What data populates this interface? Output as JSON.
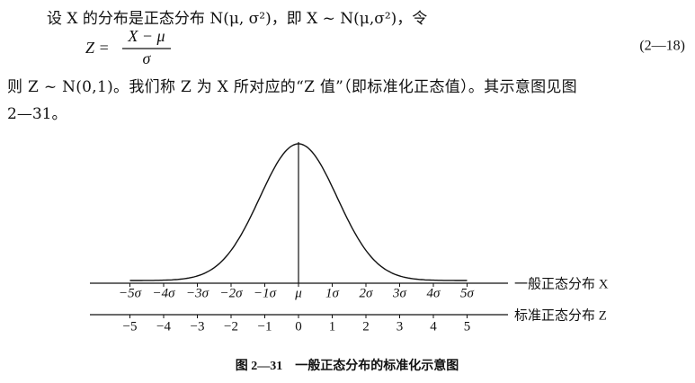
{
  "text": {
    "line1": "设 X 的分布是正态分布 N(μ, σ²)，即 X ~ N(μ,σ²)，令",
    "line2": "则 Z ~ N(0,1)。我们称 Z 为 X 所对应的“Z 值”（即标准化正态值）。其示意图见图",
    "line3": "2—31。"
  },
  "equation": {
    "lhs": "Z =",
    "numerator": "X − μ",
    "denominator": "σ",
    "number": "(2—18)"
  },
  "figure": {
    "upper_axis": {
      "labels": [
        "−5σ",
        "−4σ",
        "−3σ",
        "−2σ",
        "−1σ",
        "μ",
        "1σ",
        "2σ",
        "3σ",
        "4σ",
        "5σ"
      ],
      "name": "一般正态分布 X"
    },
    "lower_axis": {
      "labels": [
        "−5",
        "−4",
        "−3",
        "−2",
        "−1",
        "0",
        "1",
        "2",
        "3",
        "4",
        "5"
      ],
      "name": "标准正态分布 Z"
    },
    "caption": "图 2—31　一般正态分布的标准化示意图"
  }
}
